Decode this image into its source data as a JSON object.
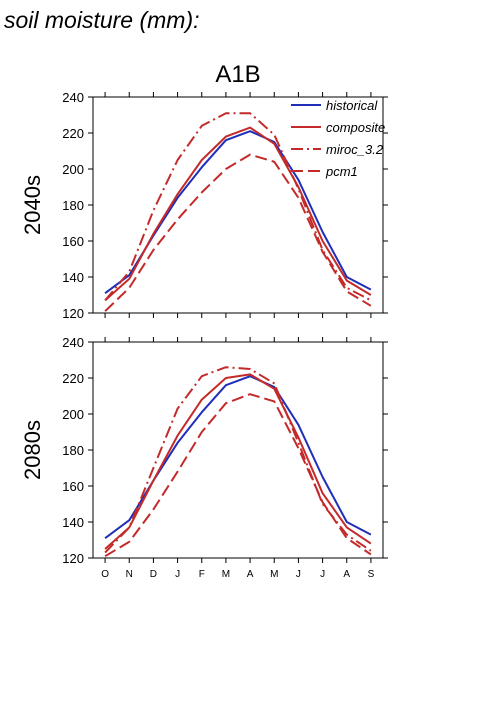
{
  "page_title": "soil moisture (mm):",
  "scenario_title": "A1B",
  "colors": {
    "historical": "#1f2fb8",
    "composite": "#c42a2a",
    "miroc_3.2": "#c42a2a",
    "pcm1": "#c42a2a"
  },
  "chart_data": [
    {
      "type": "line",
      "title": "A1B",
      "ylabel": "2040s",
      "xlabel": "",
      "categories": [
        "O",
        "N",
        "D",
        "J",
        "F",
        "M",
        "A",
        "M",
        "J",
        "J",
        "A",
        "S"
      ],
      "ylim": [
        120,
        240
      ],
      "yticks": [
        120,
        140,
        160,
        180,
        200,
        220,
        240
      ],
      "grid": false,
      "legend_position": "top-right",
      "series": [
        {
          "name": "historical",
          "style": "solid",
          "color": "#1f2fb8",
          "values": [
            131,
            141,
            163,
            184,
            201,
            216,
            221,
            215,
            194,
            165,
            140,
            133
          ]
        },
        {
          "name": "composite",
          "style": "solid",
          "color": "#c42a2a",
          "values": [
            127,
            139,
            164,
            186,
            205,
            218,
            223,
            214,
            190,
            160,
            138,
            130
          ]
        },
        {
          "name": "miroc_3.2",
          "style": "dashdot",
          "color": "#c42a2a",
          "values": [
            127,
            143,
            177,
            205,
            224,
            231,
            231,
            219,
            189,
            155,
            134,
            127
          ]
        },
        {
          "name": "pcm1",
          "style": "dashed",
          "color": "#c42a2a",
          "values": [
            121,
            134,
            155,
            172,
            187,
            200,
            208,
            204,
            184,
            154,
            132,
            124
          ]
        }
      ]
    },
    {
      "type": "line",
      "title": "",
      "ylabel": "2080s",
      "xlabel": "",
      "categories": [
        "O",
        "N",
        "D",
        "J",
        "F",
        "M",
        "A",
        "M",
        "J",
        "J",
        "A",
        "S"
      ],
      "ylim": [
        120,
        240
      ],
      "yticks": [
        120,
        140,
        160,
        180,
        200,
        220,
        240
      ],
      "grid": false,
      "legend_position": "",
      "series": [
        {
          "name": "historical",
          "style": "solid",
          "color": "#1f2fb8",
          "values": [
            131,
            141,
            163,
            184,
            201,
            216,
            221,
            215,
            194,
            165,
            140,
            133
          ]
        },
        {
          "name": "composite",
          "style": "solid",
          "color": "#c42a2a",
          "values": [
            125,
            137,
            163,
            188,
            208,
            220,
            222,
            214,
            187,
            156,
            137,
            128
          ]
        },
        {
          "name": "miroc_3.2",
          "style": "dashdot",
          "color": "#c42a2a",
          "values": [
            123,
            137,
            170,
            203,
            221,
            226,
            225,
            217,
            184,
            150,
            133,
            124
          ]
        },
        {
          "name": "pcm1",
          "style": "dashed",
          "color": "#c42a2a",
          "values": [
            121,
            129,
            147,
            168,
            190,
            206,
            211,
            207,
            181,
            151,
            131,
            122
          ]
        }
      ]
    }
  ]
}
